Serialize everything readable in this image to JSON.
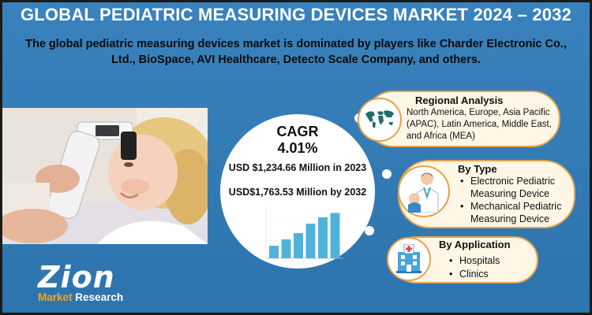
{
  "title": "GLOBAL PEDIATRIC MEASURING DEVICES MARKET 2024 – 2032",
  "subtitle": "The global pediatric measuring devices market is dominated by players like Charder Electronic Co., Ltd., BioSpace, AVI Healthcare, Detecto Scale Company, and others.",
  "logo": {
    "name": "Zion",
    "tagline_part1": "Market",
    "tagline_part2": "Research"
  },
  "cagr": {
    "label": "CAGR",
    "value": "4.01%"
  },
  "market_2023": "USD $1,234.66 Million in 2023",
  "market_2032": "USD$1,763.53 Million  by 2032",
  "regional": {
    "title": "Regional Analysis",
    "text": "North America, Europe, Asia Pacific (APAC), Latin America, Middle East, and Africa (MEA)",
    "icon": "world-map-icon"
  },
  "by_type": {
    "title": "By Type",
    "items": [
      "Electronic Pediatric Measuring Device",
      "Mechanical Pediatric Measuring Device"
    ],
    "icon": "doctor-child-icon"
  },
  "by_application": {
    "title": "By Application",
    "items": [
      "Hospitals",
      "Clinics"
    ],
    "icon": "hospital-icon"
  },
  "chart_data": {
    "type": "bar",
    "values": [
      2,
      3,
      4,
      5.5,
      6.5,
      7.2
    ],
    "bar_color": "#4fb3d9"
  },
  "colors": {
    "background": "#2f78b3",
    "bubble_border": "#e8a14a",
    "bubble_fill": "#fff6e6",
    "logo_orange": "#f4a51c"
  }
}
